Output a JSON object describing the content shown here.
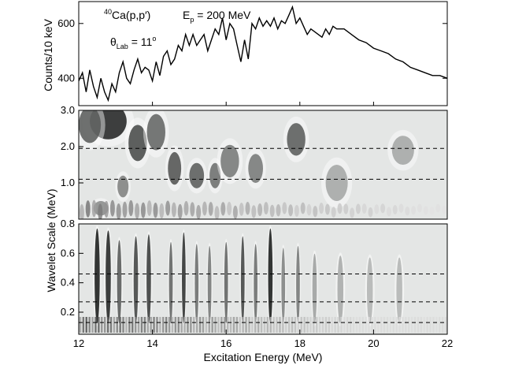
{
  "chart_data": [
    {
      "type": "line",
      "panel": "spectrum",
      "ylabel": "Counts/10 keV",
      "xlim": [
        12,
        22
      ],
      "ylim": [
        300,
        680
      ],
      "yticks": [
        400,
        600
      ],
      "ytick_labels": [
        "400",
        "600"
      ],
      "annotations": {
        "reaction_sup": "40",
        "reaction": "Ca(p,p′)",
        "energy_main": "E",
        "energy_sub": "p",
        "energy_rest": " = 200 MeV",
        "angle_main": "θ",
        "angle_sub": "Lab",
        "angle_rest": " = 11",
        "angle_sup": "o"
      },
      "x": [
        12.0,
        12.1,
        12.2,
        12.3,
        12.4,
        12.5,
        12.6,
        12.7,
        12.8,
        12.9,
        13.0,
        13.1,
        13.2,
        13.3,
        13.4,
        13.5,
        13.6,
        13.7,
        13.8,
        13.9,
        14.0,
        14.1,
        14.2,
        14.3,
        14.4,
        14.5,
        14.6,
        14.7,
        14.8,
        14.9,
        15.0,
        15.1,
        15.2,
        15.3,
        15.4,
        15.5,
        15.6,
        15.7,
        15.8,
        15.9,
        16.0,
        16.1,
        16.2,
        16.3,
        16.4,
        16.5,
        16.6,
        16.7,
        16.8,
        16.9,
        17.0,
        17.1,
        17.2,
        17.3,
        17.4,
        17.5,
        17.6,
        17.7,
        17.8,
        17.9,
        18.0,
        18.1,
        18.2,
        18.3,
        18.4,
        18.5,
        18.6,
        18.7,
        18.8,
        18.9,
        19.0,
        19.2,
        19.4,
        19.6,
        19.8,
        20.0,
        20.2,
        20.4,
        20.6,
        20.8,
        21.0,
        21.2,
        21.4,
        21.6,
        21.8,
        22.0
      ],
      "y": [
        390,
        420,
        350,
        430,
        370,
        330,
        400,
        350,
        320,
        380,
        350,
        420,
        460,
        400,
        380,
        430,
        470,
        420,
        440,
        430,
        390,
        460,
        410,
        480,
        500,
        450,
        470,
        520,
        500,
        560,
        520,
        560,
        520,
        540,
        560,
        500,
        540,
        580,
        560,
        620,
        540,
        600,
        580,
        520,
        460,
        540,
        470,
        600,
        580,
        620,
        590,
        610,
        590,
        620,
        580,
        610,
        600,
        630,
        660,
        600,
        620,
        590,
        560,
        580,
        570,
        560,
        550,
        580,
        560,
        590,
        580,
        580,
        560,
        540,
        530,
        510,
        500,
        490,
        470,
        460,
        440,
        430,
        420,
        410,
        410,
        400
      ]
    },
    {
      "type": "heatmap",
      "panel": "wavelet-high",
      "xlim": [
        12,
        22
      ],
      "ylim": [
        0,
        3.0
      ],
      "yticks": [
        1.0,
        2.0,
        3.0
      ],
      "ytick_labels": [
        "1.0",
        "2.0",
        "3.0"
      ],
      "dashed_lines": [
        1.1,
        1.95
      ],
      "blobs": [
        {
          "e": 12.8,
          "s": 2.7,
          "intensity": 0.9,
          "we": 0.5,
          "ws": 0.5
        },
        {
          "e": 12.3,
          "s": 2.6,
          "intensity": 0.6,
          "we": 0.3,
          "ws": 0.5
        },
        {
          "e": 13.6,
          "s": 2.1,
          "intensity": 0.7,
          "we": 0.25,
          "ws": 0.5
        },
        {
          "e": 14.1,
          "s": 2.4,
          "intensity": 0.55,
          "we": 0.25,
          "ws": 0.5
        },
        {
          "e": 14.6,
          "s": 1.4,
          "intensity": 0.65,
          "we": 0.18,
          "ws": 0.45
        },
        {
          "e": 15.2,
          "s": 1.2,
          "intensity": 0.6,
          "we": 0.2,
          "ws": 0.35
        },
        {
          "e": 15.7,
          "s": 1.2,
          "intensity": 0.5,
          "we": 0.15,
          "ws": 0.35
        },
        {
          "e": 16.1,
          "s": 1.6,
          "intensity": 0.45,
          "we": 0.25,
          "ws": 0.45
        },
        {
          "e": 16.8,
          "s": 1.4,
          "intensity": 0.45,
          "we": 0.2,
          "ws": 0.4
        },
        {
          "e": 17.9,
          "s": 2.2,
          "intensity": 0.6,
          "we": 0.25,
          "ws": 0.45
        },
        {
          "e": 13.2,
          "s": 0.9,
          "intensity": 0.4,
          "we": 0.15,
          "ws": 0.3
        },
        {
          "e": 12.6,
          "s": 0.3,
          "intensity": 0.35,
          "we": 0.2,
          "ws": 0.2
        },
        {
          "e": 19.0,
          "s": 1.0,
          "intensity": 0.2,
          "we": 0.3,
          "ws": 0.5
        },
        {
          "e": 20.8,
          "s": 1.9,
          "intensity": 0.2,
          "we": 0.3,
          "ws": 0.4
        }
      ]
    },
    {
      "type": "heatmap",
      "panel": "wavelet-low",
      "xlabel": "Excitation Energy (MeV)",
      "ylabel": "Wavelet Scale (MeV)",
      "xlim": [
        12,
        22
      ],
      "ylim": [
        0.05,
        0.8
      ],
      "xticks": [
        12,
        14,
        16,
        18,
        20,
        22
      ],
      "xtick_labels": [
        "12",
        "14",
        "16",
        "18",
        "20",
        "22"
      ],
      "yticks": [
        0.2,
        0.4,
        0.6,
        0.8
      ],
      "ytick_labels": [
        "0.2",
        "0.4",
        "0.6",
        "0.8"
      ],
      "dashed_lines": [
        0.13,
        0.27,
        0.46
      ],
      "stripes": [
        {
          "e": 12.5,
          "intensity": 0.9,
          "width": 0.07
        },
        {
          "e": 12.8,
          "intensity": 0.85,
          "width": 0.07
        },
        {
          "e": 13.1,
          "intensity": 0.6,
          "width": 0.06
        },
        {
          "e": 13.55,
          "intensity": 0.7,
          "width": 0.06
        },
        {
          "e": 13.9,
          "intensity": 0.75,
          "width": 0.06
        },
        {
          "e": 14.5,
          "intensity": 0.55,
          "width": 0.05
        },
        {
          "e": 14.85,
          "intensity": 0.8,
          "width": 0.05
        },
        {
          "e": 15.2,
          "intensity": 0.5,
          "width": 0.05
        },
        {
          "e": 15.55,
          "intensity": 0.45,
          "width": 0.05
        },
        {
          "e": 16.0,
          "intensity": 0.55,
          "width": 0.05
        },
        {
          "e": 16.45,
          "intensity": 0.7,
          "width": 0.05
        },
        {
          "e": 16.8,
          "intensity": 0.5,
          "width": 0.05
        },
        {
          "e": 17.2,
          "intensity": 0.9,
          "width": 0.06
        },
        {
          "e": 17.55,
          "intensity": 0.4,
          "width": 0.05
        },
        {
          "e": 17.95,
          "intensity": 0.45,
          "width": 0.05
        },
        {
          "e": 18.4,
          "intensity": 0.25,
          "width": 0.06
        },
        {
          "e": 19.1,
          "intensity": 0.2,
          "width": 0.08
        },
        {
          "e": 19.9,
          "intensity": 0.15,
          "width": 0.08
        },
        {
          "e": 20.7,
          "intensity": 0.15,
          "width": 0.08
        }
      ]
    }
  ]
}
